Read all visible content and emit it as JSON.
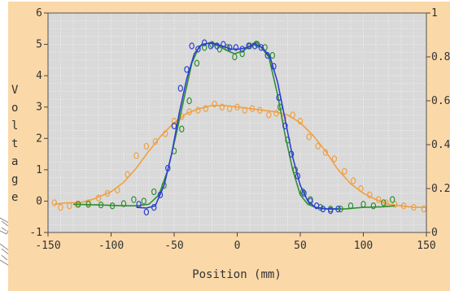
{
  "chart_data": {
    "type": "scatter",
    "title": "",
    "xlabel": "Position (mm)",
    "ylabel": "Voltage",
    "xlim": [
      -150,
      150
    ],
    "ylim": [
      -1,
      6
    ],
    "y2lim": [
      0,
      1
    ],
    "x_ticks": [
      -150,
      -100,
      -50,
      0,
      50,
      100,
      150
    ],
    "y_ticks": [
      -1,
      0,
      1,
      2,
      3,
      4,
      5,
      6
    ],
    "y2_ticks": [
      "0",
      "0.2",
      "0.4",
      "0.6",
      "0.8",
      "1"
    ],
    "grid": true,
    "legend": "none",
    "series": [
      {
        "color": "#f0a040",
        "points": [
          [
            -145,
            -0.1
          ],
          [
            -135,
            -0.05
          ],
          [
            -125,
            -0.05
          ],
          [
            -115,
            0.05
          ],
          [
            -100,
            0.3
          ],
          [
            -90,
            0.6
          ],
          [
            -80,
            1.05
          ],
          [
            -70,
            1.6
          ],
          [
            -60,
            2.1
          ],
          [
            -50,
            2.5
          ],
          [
            -40,
            2.8
          ],
          [
            -30,
            2.95
          ],
          [
            -20,
            3.05
          ],
          [
            -10,
            3.05
          ],
          [
            0,
            3.0
          ],
          [
            10,
            2.95
          ],
          [
            20,
            2.9
          ],
          [
            30,
            2.85
          ],
          [
            40,
            2.75
          ],
          [
            50,
            2.5
          ],
          [
            60,
            2.1
          ],
          [
            70,
            1.6
          ],
          [
            80,
            1.0
          ],
          [
            90,
            0.55
          ],
          [
            100,
            0.25
          ],
          [
            110,
            0.05
          ],
          [
            120,
            -0.1
          ],
          [
            130,
            -0.15
          ],
          [
            140,
            -0.2
          ],
          [
            150,
            -0.2
          ]
        ],
        "markers": [
          [
            -145,
            -0.05
          ],
          [
            -140,
            -0.2
          ],
          [
            -133,
            -0.15
          ],
          [
            -127,
            -0.1
          ],
          [
            -118,
            -0.05
          ],
          [
            -110,
            0.1
          ],
          [
            -103,
            0.25
          ],
          [
            -95,
            0.35
          ],
          [
            -87,
            0.85
          ],
          [
            -80,
            1.45
          ],
          [
            -72,
            1.75
          ],
          [
            -65,
            1.9
          ],
          [
            -57,
            2.15
          ],
          [
            -50,
            2.55
          ],
          [
            -44,
            2.7
          ],
          [
            -38,
            2.85
          ],
          [
            -31,
            2.9
          ],
          [
            -25,
            2.95
          ],
          [
            -18,
            3.1
          ],
          [
            -12,
            3.0
          ],
          [
            -6,
            2.95
          ],
          [
            0,
            3.0
          ],
          [
            6,
            2.9
          ],
          [
            12,
            2.95
          ],
          [
            18,
            2.9
          ],
          [
            25,
            2.75
          ],
          [
            31,
            2.8
          ],
          [
            37,
            2.65
          ],
          [
            44,
            2.75
          ],
          [
            50,
            2.55
          ],
          [
            57,
            2.05
          ],
          [
            64,
            1.75
          ],
          [
            70,
            1.55
          ],
          [
            77,
            1.35
          ],
          [
            85,
            0.95
          ],
          [
            92,
            0.65
          ],
          [
            98,
            0.4
          ],
          [
            105,
            0.2
          ],
          [
            112,
            0.05
          ],
          [
            118,
            -0.05
          ],
          [
            125,
            -0.1
          ],
          [
            132,
            -0.15
          ],
          [
            140,
            -0.2
          ],
          [
            148,
            -0.25
          ]
        ]
      },
      {
        "color": "#2f8f2f",
        "points": [
          [
            -130,
            -0.1
          ],
          [
            -110,
            -0.12
          ],
          [
            -90,
            -0.15
          ],
          [
            -80,
            -0.15
          ],
          [
            -70,
            -0.1
          ],
          [
            -62,
            0.2
          ],
          [
            -55,
            1.0
          ],
          [
            -48,
            2.2
          ],
          [
            -42,
            3.3
          ],
          [
            -36,
            4.4
          ],
          [
            -30,
            4.95
          ],
          [
            -22,
            5.05
          ],
          [
            -15,
            4.95
          ],
          [
            -8,
            4.8
          ],
          [
            -2,
            4.7
          ],
          [
            5,
            4.8
          ],
          [
            10,
            4.95
          ],
          [
            15,
            5.1
          ],
          [
            20,
            4.85
          ],
          [
            25,
            4.6
          ],
          [
            32,
            3.4
          ],
          [
            38,
            2.1
          ],
          [
            44,
            1.0
          ],
          [
            50,
            0.2
          ],
          [
            56,
            -0.1
          ],
          [
            62,
            -0.2
          ],
          [
            72,
            -0.25
          ],
          [
            85,
            -0.25
          ],
          [
            100,
            -0.2
          ],
          [
            115,
            -0.18
          ],
          [
            125,
            -0.15
          ]
        ],
        "markers": [
          [
            -126,
            -0.1
          ],
          [
            -118,
            -0.1
          ],
          [
            -108,
            -0.12
          ],
          [
            -99,
            -0.15
          ],
          [
            -90,
            -0.08
          ],
          [
            -82,
            0.05
          ],
          [
            -74,
            0.0
          ],
          [
            -66,
            0.3
          ],
          [
            -58,
            0.5
          ],
          [
            -50,
            1.6
          ],
          [
            -44,
            2.3
          ],
          [
            -38,
            3.2
          ],
          [
            -32,
            4.4
          ],
          [
            -26,
            4.9
          ],
          [
            -20,
            5.0
          ],
          [
            -14,
            4.85
          ],
          [
            -8,
            4.9
          ],
          [
            -2,
            4.6
          ],
          [
            4,
            4.7
          ],
          [
            10,
            4.95
          ],
          [
            16,
            5.0
          ],
          [
            22,
            4.9
          ],
          [
            28,
            4.65
          ],
          [
            34,
            3.0
          ],
          [
            40,
            1.95
          ],
          [
            46,
            1.0
          ],
          [
            52,
            0.3
          ],
          [
            58,
            0.05
          ],
          [
            66,
            -0.2
          ],
          [
            74,
            -0.25
          ],
          [
            82,
            -0.25
          ],
          [
            90,
            -0.15
          ],
          [
            100,
            -0.1
          ],
          [
            108,
            -0.15
          ],
          [
            116,
            -0.05
          ],
          [
            123,
            0.05
          ]
        ]
      },
      {
        "color": "#2d3fd0",
        "points": [
          [
            -80,
            -0.2
          ],
          [
            -72,
            -0.22
          ],
          [
            -65,
            -0.15
          ],
          [
            -58,
            0.5
          ],
          [
            -52,
            1.5
          ],
          [
            -46,
            2.8
          ],
          [
            -40,
            3.9
          ],
          [
            -34,
            4.7
          ],
          [
            -28,
            5.0
          ],
          [
            -20,
            5.05
          ],
          [
            -12,
            4.95
          ],
          [
            -5,
            4.85
          ],
          [
            2,
            4.85
          ],
          [
            8,
            4.9
          ],
          [
            14,
            5.0
          ],
          [
            20,
            4.9
          ],
          [
            26,
            4.6
          ],
          [
            32,
            3.8
          ],
          [
            38,
            2.6
          ],
          [
            44,
            1.4
          ],
          [
            50,
            0.5
          ],
          [
            56,
            0.0
          ],
          [
            62,
            -0.2
          ],
          [
            70,
            -0.25
          ],
          [
            80,
            -0.25
          ]
        ],
        "markers": [
          [
            -78,
            -0.1
          ],
          [
            -72,
            -0.35
          ],
          [
            -66,
            -0.2
          ],
          [
            -61,
            0.2
          ],
          [
            -55,
            1.05
          ],
          [
            -50,
            2.4
          ],
          [
            -45,
            3.6
          ],
          [
            -40,
            4.2
          ],
          [
            -36,
            4.95
          ],
          [
            -31,
            4.85
          ],
          [
            -26,
            5.05
          ],
          [
            -21,
            4.95
          ],
          [
            -16,
            4.95
          ],
          [
            -11,
            5.0
          ],
          [
            -6,
            4.9
          ],
          [
            -1,
            4.9
          ],
          [
            4,
            4.85
          ],
          [
            9,
            4.95
          ],
          [
            14,
            4.95
          ],
          [
            19,
            4.9
          ],
          [
            24,
            4.65
          ],
          [
            29,
            4.3
          ],
          [
            33,
            3.3
          ],
          [
            38,
            2.4
          ],
          [
            43,
            1.5
          ],
          [
            48,
            0.8
          ],
          [
            53,
            0.25
          ],
          [
            58,
            0.0
          ],
          [
            63,
            -0.15
          ],
          [
            68,
            -0.25
          ],
          [
            74,
            -0.3
          ],
          [
            80,
            -0.25
          ]
        ]
      }
    ]
  }
}
